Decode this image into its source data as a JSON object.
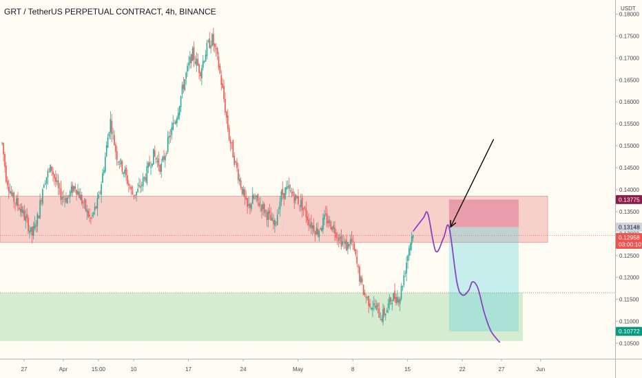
{
  "header": {
    "title": "GRT / TetherUS PERPETUAL CONTRACT, 4h, BINANCE"
  },
  "chart_data": {
    "type": "candlestick",
    "symbol": "GRT/USDT",
    "timeframe": "4h",
    "exchange": "BINANCE",
    "currency_label": "USDT",
    "ylim": [
      0.1035,
      0.1805
    ],
    "price_ticks": [
      "0.18000",
      "0.17500",
      "0.17000",
      "0.16500",
      "0.16000",
      "0.15500",
      "0.15000",
      "0.14500",
      "0.14000",
      "0.13500",
      "0.13000",
      "0.12500",
      "0.12000",
      "0.11500",
      "0.11000",
      "0.10500"
    ],
    "date_ticks": [
      {
        "label": "27",
        "day": 0
      },
      {
        "label": "Apr",
        "day": 5
      },
      {
        "label": "15:00",
        "day": 9.5
      },
      {
        "label": "10",
        "day": 14
      },
      {
        "label": "17",
        "day": 21
      },
      {
        "label": "24",
        "day": 28
      },
      {
        "label": "May",
        "day": 35
      },
      {
        "label": "8",
        "day": 42
      },
      {
        "label": "15",
        "day": 49
      },
      {
        "label": "22",
        "day": 56
      },
      {
        "label": "27",
        "day": 61
      },
      {
        "label": "Jun",
        "day": 66
      }
    ],
    "price_path": [
      [
        -2.8,
        0.1505
      ],
      [
        -2.3,
        0.143
      ],
      [
        -1.5,
        0.138
      ],
      [
        -0.5,
        0.136
      ],
      [
        0.5,
        0.132
      ],
      [
        1.0,
        0.1295
      ],
      [
        1.8,
        0.134
      ],
      [
        2.5,
        0.142
      ],
      [
        3.5,
        0.145
      ],
      [
        4.5,
        0.139
      ],
      [
        5.5,
        0.138
      ],
      [
        6.5,
        0.141
      ],
      [
        7.5,
        0.137
      ],
      [
        8.5,
        0.133
      ],
      [
        9.5,
        0.1375
      ],
      [
        10.3,
        0.1465
      ],
      [
        11.0,
        0.156
      ],
      [
        11.8,
        0.148
      ],
      [
        12.8,
        0.144
      ],
      [
        13.8,
        0.139
      ],
      [
        14.5,
        0.1395
      ],
      [
        15.5,
        0.143
      ],
      [
        16.5,
        0.148
      ],
      [
        17.5,
        0.145
      ],
      [
        18.5,
        0.1515
      ],
      [
        19.5,
        0.157
      ],
      [
        20.5,
        0.165
      ],
      [
        21.5,
        0.171
      ],
      [
        22.5,
        0.167
      ],
      [
        23.3,
        0.172
      ],
      [
        24.0,
        0.1745
      ],
      [
        24.8,
        0.169
      ],
      [
        25.5,
        0.161
      ],
      [
        26.2,
        0.152
      ],
      [
        27.0,
        0.146
      ],
      [
        27.8,
        0.1405
      ],
      [
        28.5,
        0.1355
      ],
      [
        29.3,
        0.138
      ],
      [
        30.3,
        0.1365
      ],
      [
        31.2,
        0.134
      ],
      [
        32.0,
        0.1315
      ],
      [
        32.8,
        0.1385
      ],
      [
        33.5,
        0.14
      ],
      [
        34.5,
        0.1385
      ],
      [
        35.5,
        0.1365
      ],
      [
        36.5,
        0.1325
      ],
      [
        37.5,
        0.1305
      ],
      [
        38.5,
        0.1335
      ],
      [
        39.5,
        0.1315
      ],
      [
        40.5,
        0.1285
      ],
      [
        41.2,
        0.127
      ],
      [
        41.8,
        0.1285
      ],
      [
        42.3,
        0.125
      ],
      [
        42.8,
        0.1205
      ],
      [
        43.5,
        0.116
      ],
      [
        44.3,
        0.114
      ],
      [
        45.0,
        0.113
      ],
      [
        45.6,
        0.111
      ],
      [
        46.3,
        0.1125
      ],
      [
        47.0,
        0.1155
      ],
      [
        48.0,
        0.1155
      ],
      [
        48.7,
        0.122
      ],
      [
        49.2,
        0.127
      ],
      [
        49.7,
        0.1305
      ]
    ],
    "projection_path": [
      [
        49.7,
        0.1305
      ],
      [
        51.0,
        0.1335
      ],
      [
        51.6,
        0.1345
      ],
      [
        52.6,
        0.126
      ],
      [
        53.6,
        0.129
      ],
      [
        54.3,
        0.1315
      ],
      [
        55.3,
        0.119
      ],
      [
        56.0,
        0.116
      ],
      [
        56.8,
        0.117
      ],
      [
        57.3,
        0.119
      ],
      [
        58.0,
        0.1175
      ],
      [
        58.8,
        0.112
      ],
      [
        59.6,
        0.108
      ],
      [
        60.4,
        0.106
      ],
      [
        60.8,
        0.1052
      ]
    ],
    "zones": {
      "resistance": {
        "from": 0.128,
        "to": 0.1385
      },
      "support": {
        "from": 0.1055,
        "to": 0.1165
      }
    },
    "position": {
      "type": "short",
      "start_day": 54.3,
      "end_day": 63.2,
      "stop": 0.13775,
      "entry": 0.1315,
      "target": 0.10772
    },
    "horizontal_lines": [
      0.1165
    ],
    "arrow": {
      "from": [
        60.0,
        0.1515
      ],
      "to": [
        54.5,
        0.1315
      ]
    },
    "last_price": 0.12958,
    "badges": [
      {
        "label": "0.13775",
        "price": 0.13775,
        "bg": "#8b1f4b",
        "fg": "#ffffff"
      },
      {
        "label": "0.13148",
        "price": 0.13148,
        "bg": "#d1d4dc",
        "fg": "#131722"
      },
      {
        "label": "0.12958",
        "price": 0.1291,
        "bg": "#ef5350",
        "fg": "#ffffff"
      },
      {
        "label": "03:00:10",
        "price": 0.12755,
        "bg": "#ef5350",
        "fg": "#ffffff"
      },
      {
        "label": "0.10772",
        "price": 0.10772,
        "bg": "#089981",
        "fg": "#ffffff"
      }
    ],
    "colors": {
      "up": "#26a69a",
      "down": "#ef5350",
      "projection": "#8a3fc2",
      "resistance_zone": "#ef9a9a",
      "support_zone": "#a5d6a7",
      "stop_zone": "#c2185b",
      "target_zone": "#4dd0e1",
      "background": "#fffdf3"
    },
    "grid": false
  }
}
